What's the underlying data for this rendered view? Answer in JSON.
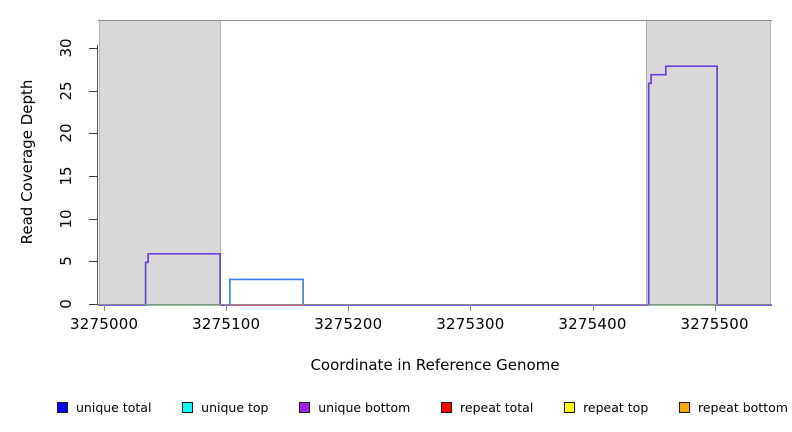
{
  "figure": {
    "background": "#ffffff",
    "plot_background": "#ffffff",
    "frame_top_line_color": "#8C8C8C",
    "highlight_region_fill": "#D8D8D8",
    "highlight_region_border": "#B3B3B3",
    "x_axis_color": "#8A8A8A",
    "y_axis_color": "#3F3F3F"
  },
  "legend": {
    "items": [
      {
        "label": "unique total",
        "color": "#0000FF"
      },
      {
        "label": "unique top",
        "color": "#00FFFF"
      },
      {
        "label": "unique bottom",
        "color": "#A020F0"
      },
      {
        "label": "repeat total",
        "color": "#FF0000"
      },
      {
        "label": "repeat top",
        "color": "#FFFF00"
      },
      {
        "label": "repeat bottom",
        "color": "#FFA500"
      }
    ]
  },
  "chart_data": {
    "type": "line",
    "title": "",
    "xlabel": "Coordinate in Reference Genome",
    "ylabel": "Read Coverage Depth",
    "xlim": [
      3274995,
      3275547
    ],
    "ylim": [
      0,
      33.3
    ],
    "x_ticks": [
      3275000,
      3275100,
      3275200,
      3275300,
      3275400,
      3275500
    ],
    "y_ticks": [
      0,
      5,
      10,
      15,
      20,
      25,
      30
    ],
    "grid": false,
    "legend_position": "bottom",
    "highlight_regions": [
      {
        "start": 3274996,
        "end": 3275096
      },
      {
        "start": 3275444,
        "end": 3275546
      }
    ],
    "series": [
      {
        "name": "unique bottom coverage (purple line)",
        "color": "#6B3FE3",
        "width": 1.7,
        "points": [
          [
            3274995,
            0
          ],
          [
            3275034,
            0
          ],
          [
            3275034,
            5
          ],
          [
            3275036,
            5
          ],
          [
            3275036,
            6
          ],
          [
            3275095,
            6
          ],
          [
            3275095,
            0
          ],
          [
            3275446,
            0
          ],
          [
            3275446,
            26
          ],
          [
            3275448,
            26
          ],
          [
            3275448,
            27
          ],
          [
            3275460,
            27
          ],
          [
            3275460,
            28
          ],
          [
            3275502,
            28
          ],
          [
            3275502,
            0
          ],
          [
            3275547,
            0
          ]
        ]
      },
      {
        "name": "unique total coverage (blue box)",
        "color": "#3D7DE9",
        "width": 1.6,
        "points": [
          [
            3275103,
            0
          ],
          [
            3275103,
            3
          ],
          [
            3275163,
            3
          ],
          [
            3275163,
            0
          ]
        ]
      },
      {
        "name": "green baseline segment left",
        "color": "#62BC74",
        "width": 1.4,
        "points": [
          [
            3275034,
            0
          ],
          [
            3275095,
            0
          ]
        ]
      },
      {
        "name": "green baseline segment right",
        "color": "#62BC74",
        "width": 1.4,
        "points": [
          [
            3275446,
            0
          ],
          [
            3275502,
            0
          ]
        ]
      },
      {
        "name": "repeat total baseline segment (red)",
        "color": "#E25A6B",
        "width": 1.4,
        "points": [
          [
            3275103,
            0
          ],
          [
            3275163,
            0
          ]
        ]
      }
    ]
  }
}
